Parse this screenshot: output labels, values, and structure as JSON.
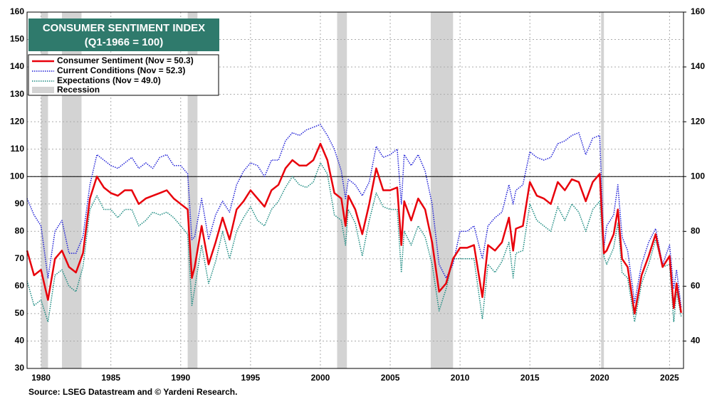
{
  "chart_data": {
    "type": "line",
    "title": "CONSUMER SENTIMENT INDEX",
    "subtitle": "(Q1-1966 = 100)",
    "source": "Source: LSEG Datastream and © Yardeni Research.",
    "xlim": [
      1979,
      2026
    ],
    "xticks": [
      1980,
      1985,
      1990,
      1995,
      2000,
      2005,
      2010,
      2015,
      2020,
      2025
    ],
    "ylim": [
      30,
      160
    ],
    "yticks": [
      30,
      40,
      50,
      60,
      70,
      80,
      90,
      100,
      110,
      120,
      130,
      140,
      150,
      160
    ],
    "y2lim": [
      30,
      160
    ],
    "y2ticks": [
      40,
      60,
      80,
      100,
      120,
      140,
      160
    ],
    "grid": true,
    "reference_line": 100,
    "recession": {
      "name": "Recession",
      "color": "#d3d3d3",
      "spans": [
        [
          1980.0,
          1980.5
        ],
        [
          1981.5,
          1982.9
        ],
        [
          1990.5,
          1991.2
        ],
        [
          2001.2,
          2001.9
        ],
        [
          2007.9,
          2009.5
        ],
        [
          2020.1,
          2020.3
        ]
      ]
    },
    "x": [
      1979.0,
      1979.5,
      1980.0,
      1980.5,
      1981.0,
      1981.5,
      1982.0,
      1982.5,
      1983.0,
      1983.5,
      1984.0,
      1984.5,
      1985.0,
      1985.5,
      1986.0,
      1986.5,
      1987.0,
      1987.5,
      1988.0,
      1988.5,
      1989.0,
      1989.5,
      1990.0,
      1990.5,
      1990.8,
      1991.0,
      1991.5,
      1992.0,
      1992.5,
      1993.0,
      1993.5,
      1994.0,
      1994.5,
      1995.0,
      1995.5,
      1996.0,
      1996.5,
      1997.0,
      1997.5,
      1998.0,
      1998.5,
      1999.0,
      1999.5,
      2000.0,
      2000.5,
      2001.0,
      2001.5,
      2001.8,
      2002.0,
      2002.5,
      2003.0,
      2003.5,
      2004.0,
      2004.5,
      2005.0,
      2005.5,
      2005.8,
      2006.0,
      2006.5,
      2007.0,
      2007.5,
      2008.0,
      2008.5,
      2009.0,
      2009.5,
      2010.0,
      2010.5,
      2011.0,
      2011.6,
      2012.0,
      2012.5,
      2013.0,
      2013.5,
      2013.8,
      2014.0,
      2014.5,
      2015.0,
      2015.5,
      2016.0,
      2016.5,
      2017.0,
      2017.5,
      2018.0,
      2018.5,
      2019.0,
      2019.5,
      2020.0,
      2020.3,
      2020.5,
      2021.0,
      2021.3,
      2021.6,
      2022.0,
      2022.5,
      2023.0,
      2023.5,
      2024.0,
      2024.5,
      2025.0,
      2025.3,
      2025.5,
      2025.83
    ],
    "series": [
      {
        "name": "Consumer Sentiment (Nov = 50.3)",
        "color": "#e8000b",
        "line_style": "solid",
        "values": [
          73,
          64,
          66,
          55,
          70,
          73,
          67,
          65,
          72,
          92,
          100,
          96,
          94,
          93,
          95,
          95,
          90,
          92,
          93,
          94,
          95,
          92,
          90,
          88,
          63,
          67,
          82,
          68,
          76,
          85,
          77,
          88,
          91,
          95,
          92,
          89,
          95,
          97,
          103,
          106,
          104,
          104,
          106,
          112,
          106,
          94,
          92,
          82,
          93,
          88,
          79,
          90,
          103,
          95,
          95,
          96,
          75,
          91,
          84,
          92,
          88,
          76,
          58,
          61,
          70,
          74,
          74,
          75,
          56,
          75,
          73,
          76,
          85,
          73,
          81,
          82,
          98,
          93,
          92,
          90,
          98,
          95,
          99,
          98,
          91,
          98,
          101,
          72,
          73,
          79,
          88,
          70,
          67,
          50,
          64,
          71,
          79,
          67,
          71,
          52,
          61,
          50.3
        ]
      },
      {
        "name": "Current Conditions  (Nov = 52.3)",
        "color": "#1f1fd6",
        "line_style": "dotted",
        "values": [
          92,
          86,
          82,
          63,
          80,
          84,
          72,
          72,
          78,
          97,
          108,
          106,
          104,
          103,
          105,
          107,
          103,
          105,
          103,
          107,
          108,
          104,
          104,
          101,
          77,
          78,
          92,
          77,
          86,
          91,
          87,
          97,
          102,
          105,
          104,
          100,
          106,
          106,
          113,
          116,
          115,
          117,
          118,
          119,
          115,
          110,
          102,
          92,
          99,
          97,
          93,
          98,
          111,
          107,
          108,
          110,
          90,
          108,
          104,
          108,
          102,
          90,
          68,
          63,
          68,
          80,
          80,
          82,
          70,
          82,
          85,
          87,
          97,
          90,
          95,
          97,
          109,
          107,
          106,
          107,
          112,
          113,
          115,
          116,
          108,
          114,
          115,
          74,
          82,
          86,
          97,
          78,
          73,
          54,
          68,
          76,
          81,
          68,
          75,
          59,
          66,
          52.3
        ]
      },
      {
        "name": "Expectations (Nov = 49.0)",
        "color": "#1a8a80",
        "line_style": "dotted",
        "values": [
          62,
          53,
          55,
          47,
          64,
          66,
          60,
          58,
          67,
          88,
          93,
          88,
          88,
          85,
          88,
          88,
          82,
          84,
          87,
          86,
          87,
          85,
          82,
          79,
          53,
          59,
          75,
          61,
          69,
          80,
          70,
          80,
          85,
          89,
          84,
          82,
          88,
          91,
          96,
          100,
          97,
          96,
          98,
          105,
          101,
          86,
          84,
          75,
          88,
          83,
          71,
          84,
          94,
          89,
          88,
          88,
          65,
          80,
          75,
          82,
          78,
          68,
          51,
          59,
          70,
          70,
          70,
          70,
          48,
          68,
          65,
          69,
          76,
          63,
          72,
          73,
          90,
          84,
          82,
          80,
          89,
          84,
          90,
          87,
          80,
          88,
          91,
          71,
          68,
          74,
          83,
          65,
          63,
          47,
          61,
          68,
          77,
          67,
          68,
          47,
          58,
          49.0
        ]
      }
    ]
  }
}
